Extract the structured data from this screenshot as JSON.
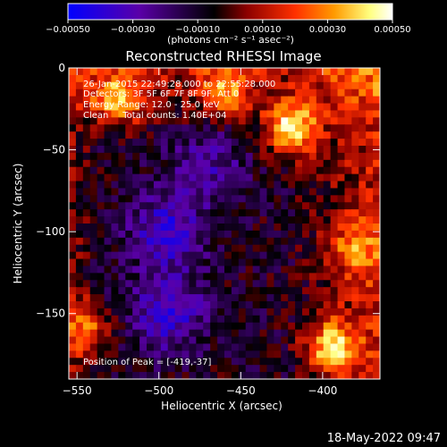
{
  "chart_data": {
    "type": "heatmap",
    "title": "Reconstructed RHESSI Image",
    "xlabel": "Heliocentric X (arcsec)",
    "ylabel": "Heliocentric Y (arcsec)",
    "xlim": [
      -555,
      -365
    ],
    "ylim": [
      -190,
      0
    ],
    "x_ticks": [
      -550,
      -500,
      -450,
      -400
    ],
    "x_tick_labels": [
      "−550",
      "−500",
      "−450",
      "−400"
    ],
    "y_ticks": [
      0,
      -50,
      -100,
      -150
    ],
    "y_tick_labels": [
      "0",
      "−50",
      "−100",
      "−150"
    ],
    "colorbar": {
      "range": [
        -0.0005,
        0.0005
      ],
      "ticks": [
        -0.0005,
        -0.0003,
        -0.0001,
        0.0001,
        0.0003,
        0.0005
      ],
      "tick_labels": [
        "−0.00050",
        "−0.00030",
        "−0.00010",
        "0.00010",
        "0.00030",
        "0.00050"
      ],
      "unit_label": "(photons cm⁻² s⁻¹ asec⁻²)",
      "colors": [
        "#0000ff",
        "#5a00a8",
        "#000000",
        "#8b0000",
        "#ff3000",
        "#ff9a00",
        "#ffff80",
        "#ffffff"
      ]
    },
    "annotations": [
      "26-Jan-2015 22:49:28.000 to 22:55:28.000",
      "Detectors: 3F 5F 6F 7F 8F 9F, Att 0",
      "Energy Range: 12.0 - 25.0 keV",
      "Clean     Total counts: 1.40E+04"
    ],
    "peak_label": "Position of Peak = [-419,-37]",
    "peak_position": [
      -419,
      -37
    ],
    "hot_regions": [
      {
        "x": -419,
        "y": -37,
        "value": 0.0005
      },
      {
        "x": -395,
        "y": -170,
        "value": 0.0004
      },
      {
        "x": -525,
        "y": -20,
        "value": 0.00035
      },
      {
        "x": -460,
        "y": -15,
        "value": 0.0003
      },
      {
        "x": -545,
        "y": -160,
        "value": 0.0003
      },
      {
        "x": -380,
        "y": -110,
        "value": 0.00025
      }
    ],
    "cold_regions": [
      {
        "x": -495,
        "y": -100,
        "value": -0.0003
      },
      {
        "x": -495,
        "y": -150,
        "value": -0.0003
      },
      {
        "x": -470,
        "y": -60,
        "value": -0.0002
      }
    ]
  },
  "footer": {
    "timestamp": "18-May-2022 09:47"
  }
}
